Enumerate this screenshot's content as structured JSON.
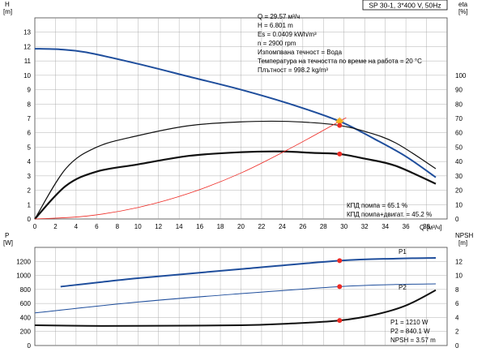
{
  "header": {
    "pump_label": "SP 30-1, 3*400 V, 50Hz"
  },
  "colors": {
    "blue": "#1f4e9c",
    "black": "#111111",
    "red": "#ee2a24",
    "orange": "#f5a623",
    "grid": "#9e9e9e"
  },
  "chart_data": [
    {
      "type": "line",
      "name": "upper",
      "x_axis": {
        "label": "Q [м³/ч]",
        "min": 0,
        "max": 40,
        "ticks": [
          0,
          2,
          4,
          6,
          8,
          10,
          12,
          14,
          16,
          18,
          20,
          22,
          24,
          26,
          28,
          30,
          32,
          34,
          36,
          38
        ]
      },
      "y_left": {
        "label_top": "H",
        "label_unit": "[m]",
        "min": 0,
        "max": 14,
        "ticks": [
          0,
          1,
          2,
          3,
          4,
          5,
          6,
          7,
          8,
          9,
          10,
          11,
          12,
          13
        ]
      },
      "y_right": {
        "label_top": "eta",
        "label_unit": "[%]",
        "min": 0,
        "max": 140,
        "ticks": [
          0,
          10,
          20,
          30,
          40,
          50,
          60,
          70,
          80,
          90,
          100
        ]
      },
      "series": [
        {
          "name": "H",
          "axis": "left",
          "color": "blue",
          "width": 2,
          "x": [
            0,
            2.5,
            5,
            10,
            15,
            20,
            25,
            29.57,
            33,
            36,
            38.9
          ],
          "y": [
            11.85,
            11.8,
            11.6,
            10.8,
            9.9,
            9.0,
            7.95,
            6.8,
            5.55,
            4.35,
            2.9
          ]
        },
        {
          "name": "КПД помпа",
          "axis": "right",
          "color": "black",
          "width": 1.2,
          "x": [
            0,
            3,
            6,
            10,
            15,
            20,
            24,
            27,
            29.57,
            32,
            35,
            38.9
          ],
          "y": [
            0,
            35,
            50,
            58,
            65,
            67.6,
            68,
            67,
            65.1,
            61,
            53,
            35
          ]
        },
        {
          "name": "КПД помпа+двигат.",
          "axis": "right",
          "color": "black",
          "width": 2.2,
          "x": [
            0,
            3,
            6,
            10,
            15,
            20,
            24,
            27,
            29.57,
            32,
            35,
            38.9
          ],
          "y": [
            0,
            23,
            33,
            38,
            44,
            46.5,
            47,
            46,
            45.2,
            42,
            37,
            24.5
          ]
        },
        {
          "name": "system",
          "axis": "left",
          "color": "red",
          "width": 0.8,
          "x": [
            0,
            5,
            10,
            15,
            20,
            25,
            29.57,
            30.2
          ],
          "y": [
            0,
            0.2,
            0.8,
            1.8,
            3.2,
            5.0,
            6.801,
            7.05
          ]
        }
      ],
      "points": [
        {
          "axis": "left",
          "x": 29.57,
          "y": 6.801,
          "color": "orange"
        },
        {
          "axis": "right",
          "x": 29.57,
          "y": 65.1,
          "color": "red"
        },
        {
          "axis": "right",
          "x": 29.57,
          "y": 45.2,
          "color": "red"
        }
      ],
      "annotations": [
        "Q = 29.57 м³/ч",
        "H = 6.801 m",
        "Es = 0.0409 kWh/m³",
        "n = 2900 rpm",
        "Изпомпвана течност = Вода",
        "Температура на течността по време на работа = 20 °C",
        "Плътност = 998.2 kg/m³"
      ],
      "efficiency_notes": [
        "КПД помпа = 65.1 %",
        "КПД помпа+двигат. = 45.2 %"
      ]
    },
    {
      "type": "line",
      "name": "lower",
      "x_axis": {
        "min": 0,
        "max": 40
      },
      "y_left": {
        "label_top": "P",
        "label_unit": "[W]",
        "min": 0,
        "max": 1400,
        "ticks": [
          0,
          200,
          400,
          600,
          800,
          1000,
          1200
        ]
      },
      "y_right": {
        "label_top": "NPSH",
        "label_unit": "[m]",
        "min": 0,
        "max": 14,
        "ticks": [
          0,
          2,
          4,
          6,
          8,
          10,
          12
        ]
      },
      "series": [
        {
          "name": "P1",
          "axis": "left",
          "color": "blue",
          "width": 2,
          "x": [
            2.5,
            10,
            20,
            29.57,
            35,
            38.9
          ],
          "y": [
            840,
            960,
            1090,
            1210,
            1240,
            1250
          ]
        },
        {
          "name": "P2",
          "axis": "left",
          "color": "blue",
          "width": 1,
          "x": [
            0,
            10,
            20,
            29.57,
            35,
            38.9
          ],
          "y": [
            465,
            620,
            740,
            840.1,
            870,
            880
          ]
        },
        {
          "name": "NPSH",
          "axis": "right",
          "color": "black",
          "width": 2,
          "x": [
            0,
            5,
            10,
            20,
            25,
            29.57,
            33,
            36,
            38.9
          ],
          "y": [
            2.9,
            2.8,
            2.8,
            2.9,
            3.15,
            3.57,
            4.4,
            5.7,
            7.9
          ]
        }
      ],
      "series_labels": [
        {
          "text": "P1",
          "x": 36.7,
          "y": 1245
        },
        {
          "text": "P2",
          "x": 36.7,
          "y": 822
        }
      ],
      "points": [
        {
          "axis": "left",
          "x": 29.57,
          "y": 1210,
          "color": "red"
        },
        {
          "axis": "left",
          "x": 29.57,
          "y": 840.1,
          "color": "red"
        },
        {
          "axis": "right",
          "x": 29.57,
          "y": 3.57,
          "color": "red"
        }
      ],
      "readouts": [
        "P1 = 1210 W",
        "P2 = 840.1 W",
        "NPSH = 3.57 m"
      ]
    }
  ]
}
